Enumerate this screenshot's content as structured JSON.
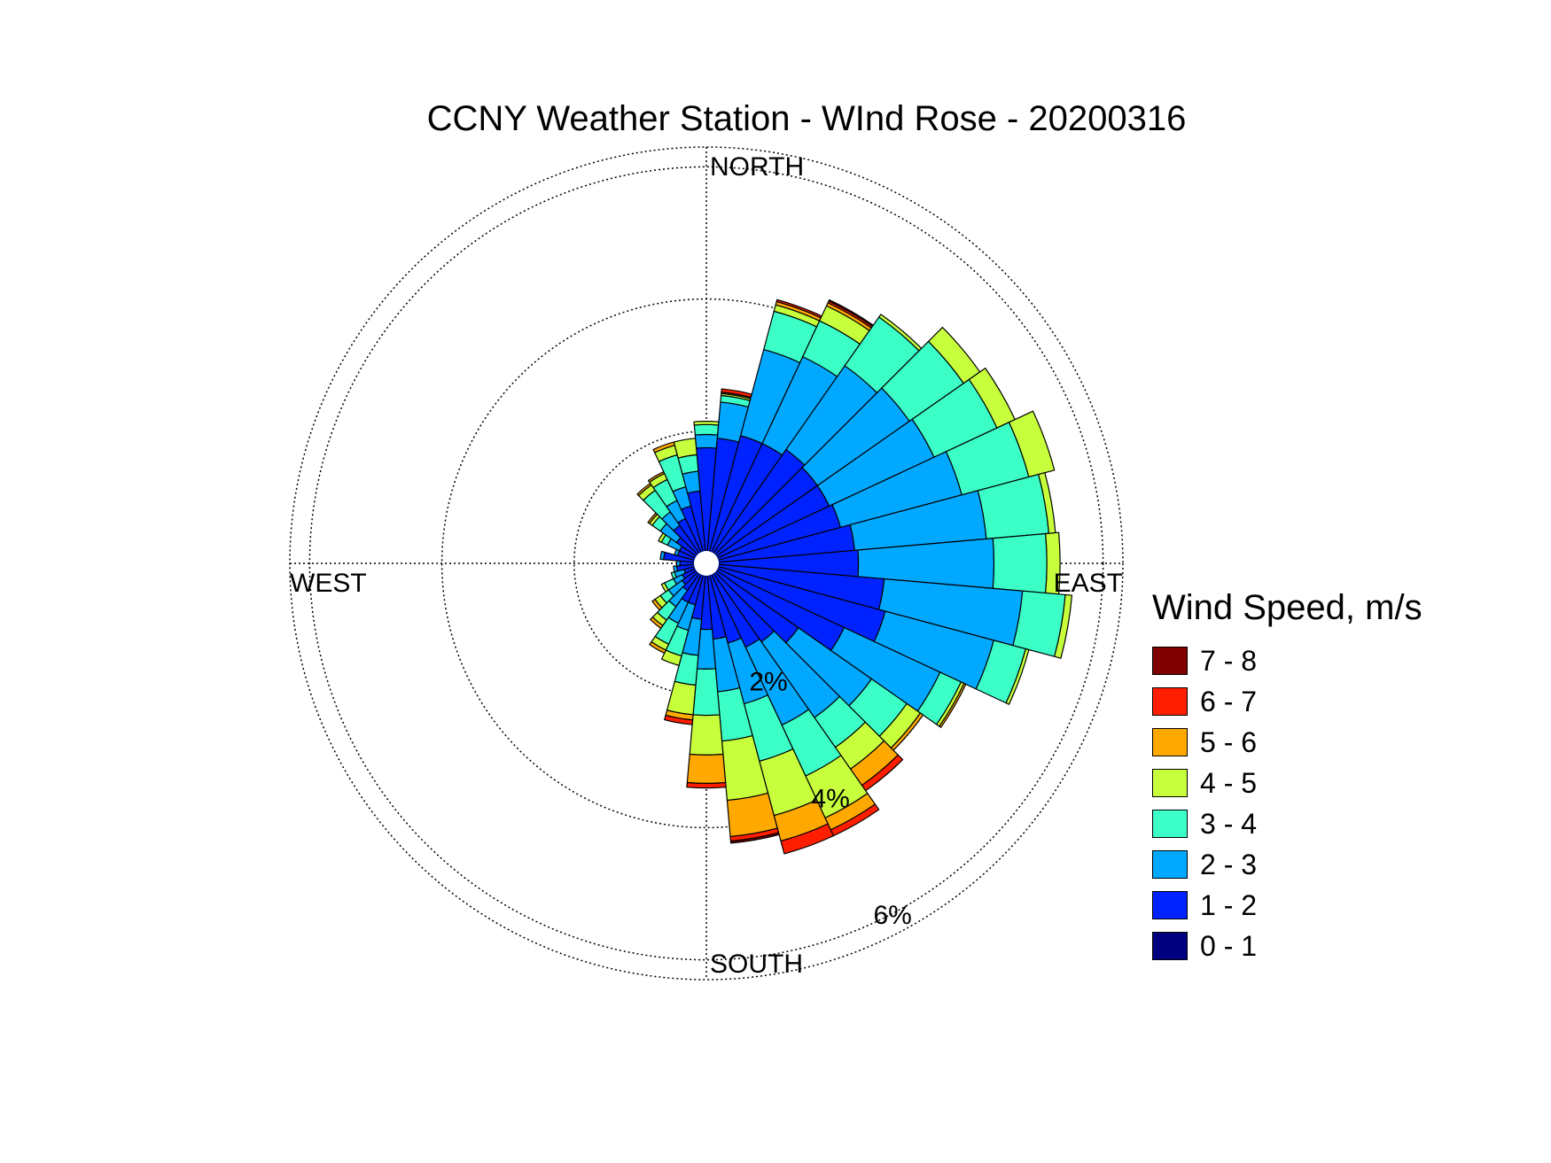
{
  "chart_data": {
    "type": "wind-rose",
    "title": "CCNY Weather Station - WInd Rose - 20200316",
    "direction_labels": {
      "north": "NORTH",
      "east": "EAST",
      "south": "SOUTH",
      "west": "WEST"
    },
    "rings": [
      {
        "value": 2,
        "label": "2%"
      },
      {
        "value": 4,
        "label": "4%"
      },
      {
        "value": 6,
        "label": "6%"
      }
    ],
    "rmax": 6.3,
    "rlabel_bearing_deg": 152,
    "sector_width_deg": 10,
    "legend_title": "Wind Speed, m/s",
    "bins": [
      {
        "label": "0 - 1",
        "color": "#00007f"
      },
      {
        "label": "1 - 2",
        "color": "#0022ff"
      },
      {
        "label": "2 - 3",
        "color": "#00a8ff"
      },
      {
        "label": "3 - 4",
        "color": "#3cffc8"
      },
      {
        "label": "4 - 5",
        "color": "#c8ff3c"
      },
      {
        "label": "5 - 6",
        "color": "#ffa800"
      },
      {
        "label": "6 - 7",
        "color": "#ff1e00"
      },
      {
        "label": "7 - 8",
        "color": "#7f0000"
      }
    ],
    "sectors": [
      {
        "dir": 0,
        "cum": [
          0.15,
          1.75,
          1.95,
          2.1,
          2.15
        ]
      },
      {
        "dir": 10,
        "cum": [
          0.15,
          1.9,
          2.45,
          2.55,
          2.58,
          2.6,
          2.65
        ]
      },
      {
        "dir": 20,
        "cum": [
          0.15,
          2.0,
          3.35,
          3.95,
          4.05,
          4.1,
          4.13
        ]
      },
      {
        "dir": 30,
        "cum": [
          0.15,
          2.0,
          3.45,
          4.05,
          4.3,
          4.35,
          4.38,
          4.4
        ]
      },
      {
        "dir": 40,
        "cum": [
          0.15,
          2.1,
          3.65,
          4.55,
          4.6
        ]
      },
      {
        "dir": 50,
        "cum": [
          0.15,
          2.05,
          3.75,
          4.75,
          5.05
        ]
      },
      {
        "dir": 60,
        "cum": [
          0.15,
          2.05,
          3.8,
          4.85,
          5.15
        ]
      },
      {
        "dir": 70,
        "cum": [
          0.15,
          2.1,
          4.0,
          5.05,
          5.45
        ]
      },
      {
        "dir": 80,
        "cum": [
          0.15,
          2.25,
          4.25,
          5.2,
          5.3
        ]
      },
      {
        "dir": 90,
        "cum": [
          0.15,
          2.3,
          4.35,
          5.15,
          5.35
        ]
      },
      {
        "dir": 100,
        "cum": [
          0.15,
          2.7,
          4.8,
          5.45,
          5.55
        ]
      },
      {
        "dir": 110,
        "cum": [
          0.15,
          2.8,
          4.5,
          5.0,
          5.05
        ]
      },
      {
        "dir": 120,
        "cum": [
          0.15,
          2.3,
          3.9,
          4.25,
          4.3,
          4.33
        ]
      },
      {
        "dir": 130,
        "cum": [
          0.15,
          1.7,
          3.05,
          3.7,
          3.95,
          4.0
        ]
      },
      {
        "dir": 140,
        "cum": [
          0.15,
          1.45,
          2.85,
          3.4,
          3.8,
          4.1,
          4.2
        ]
      },
      {
        "dir": 150,
        "cum": [
          0.15,
          1.4,
          2.7,
          3.55,
          4.25,
          4.45,
          4.55
        ]
      },
      {
        "dir": 160,
        "cum": [
          0.15,
          1.25,
          2.2,
          3.1,
          3.95,
          4.35,
          4.55
        ]
      },
      {
        "dir": 170,
        "cum": [
          0.15,
          1.15,
          1.95,
          2.7,
          3.6,
          4.15,
          4.22,
          4.25
        ]
      },
      {
        "dir": 180,
        "cum": [
          0.15,
          1.0,
          1.6,
          2.3,
          2.9,
          3.33,
          3.4
        ]
      },
      {
        "dir": 190,
        "cum": [
          0.15,
          0.85,
          1.4,
          1.85,
          2.3,
          2.38,
          2.45
        ]
      },
      {
        "dir": 200,
        "cum": [
          0.15,
          0.65,
          1.05,
          1.45,
          1.6
        ]
      },
      {
        "dir": 210,
        "cum": [
          0.15,
          0.65,
          1.0,
          1.35,
          1.45,
          1.5
        ]
      },
      {
        "dir": 220,
        "cum": [
          0.15,
          0.5,
          0.8,
          1.05,
          1.15,
          1.2
        ]
      },
      {
        "dir": 230,
        "cum": [
          0.15,
          0.45,
          0.7,
          0.85,
          0.95,
          1.0
        ]
      },
      {
        "dir": 240,
        "cum": [
          0.15,
          0.4,
          0.55,
          0.7,
          0.75
        ]
      },
      {
        "dir": 250,
        "cum": [
          0.15,
          0.35,
          0.5,
          0.55
        ]
      },
      {
        "dir": 260,
        "cum": [
          0.15,
          0.45,
          0.5
        ]
      },
      {
        "dir": 270,
        "cum": [
          0.15,
          0.4,
          0.45
        ]
      },
      {
        "dir": 280,
        "cum": [
          0.15,
          0.65,
          0.7
        ]
      },
      {
        "dir": 290,
        "cum": [
          0.15,
          0.45,
          0.5
        ]
      },
      {
        "dir": 300,
        "cum": [
          0.15,
          0.45,
          0.65,
          0.75,
          0.8
        ]
      },
      {
        "dir": 310,
        "cum": [
          0.15,
          0.55,
          0.85,
          1.0,
          1.05,
          1.08
        ]
      },
      {
        "dir": 320,
        "cum": [
          0.15,
          0.7,
          0.95,
          1.35,
          1.45,
          1.48
        ]
      },
      {
        "dir": 330,
        "cum": [
          0.15,
          0.75,
          1.05,
          1.4,
          1.5,
          1.53
        ]
      },
      {
        "dir": 340,
        "cum": [
          0.15,
          0.9,
          1.2,
          1.7,
          1.85,
          1.9
        ]
      },
      {
        "dir": 350,
        "cum": [
          0.15,
          1.1,
          1.4,
          1.65,
          1.9
        ]
      }
    ]
  }
}
